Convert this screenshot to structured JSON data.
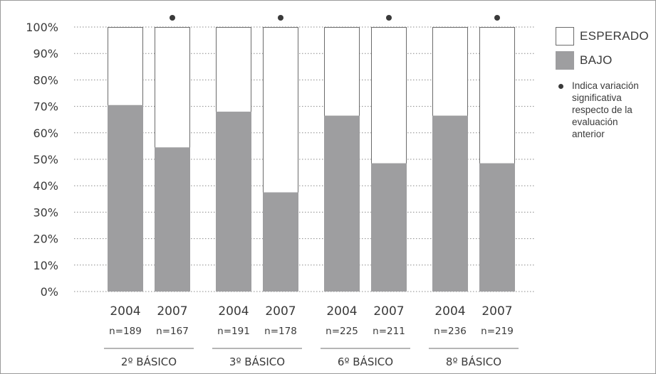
{
  "chart_data": {
    "type": "bar",
    "stacked": true,
    "ylim": [
      0,
      100
    ],
    "yticks": [
      "0%",
      "10%",
      "20%",
      "30%",
      "40%",
      "50%",
      "60%",
      "70%",
      "80%",
      "90%",
      "100%"
    ],
    "groups": [
      {
        "label": "2º BÁSICO",
        "bars": [
          {
            "year": "2004",
            "n": "n=189",
            "bajo": 70.5,
            "esperado": 29.5,
            "significant": false
          },
          {
            "year": "2007",
            "n": "n=167",
            "bajo": 54.5,
            "esperado": 45.5,
            "significant": true
          }
        ]
      },
      {
        "label": "3º BÁSICO",
        "bars": [
          {
            "year": "2004",
            "n": "n=191",
            "bajo": 68,
            "esperado": 32,
            "significant": false
          },
          {
            "year": "2007",
            "n": "n=178",
            "bajo": 37.5,
            "esperado": 62.5,
            "significant": true
          }
        ]
      },
      {
        "label": "6º BÁSICO",
        "bars": [
          {
            "year": "2004",
            "n": "n=225",
            "bajo": 66.5,
            "esperado": 33.5,
            "significant": false
          },
          {
            "year": "2007",
            "n": "n=211",
            "bajo": 48.5,
            "esperado": 51.5,
            "significant": true
          }
        ]
      },
      {
        "label": "8º BÁSICO",
        "bars": [
          {
            "year": "2004",
            "n": "n=236",
            "bajo": 66.5,
            "esperado": 33.5,
            "significant": false
          },
          {
            "year": "2007",
            "n": "n=219",
            "bajo": 48.5,
            "esperado": 51.5,
            "significant": true
          }
        ]
      }
    ],
    "series": [
      {
        "name": "BAJO",
        "color": "#9e9ea0"
      },
      {
        "name": "ESPERADO",
        "color": "#ffffff"
      }
    ],
    "grid": "dotted horizontal",
    "legend_position": "right"
  },
  "legend": {
    "esperado": "ESPERADO",
    "bajo": "BAJO",
    "note": "Indica variación significativa respecto de la evaluación anterior"
  }
}
